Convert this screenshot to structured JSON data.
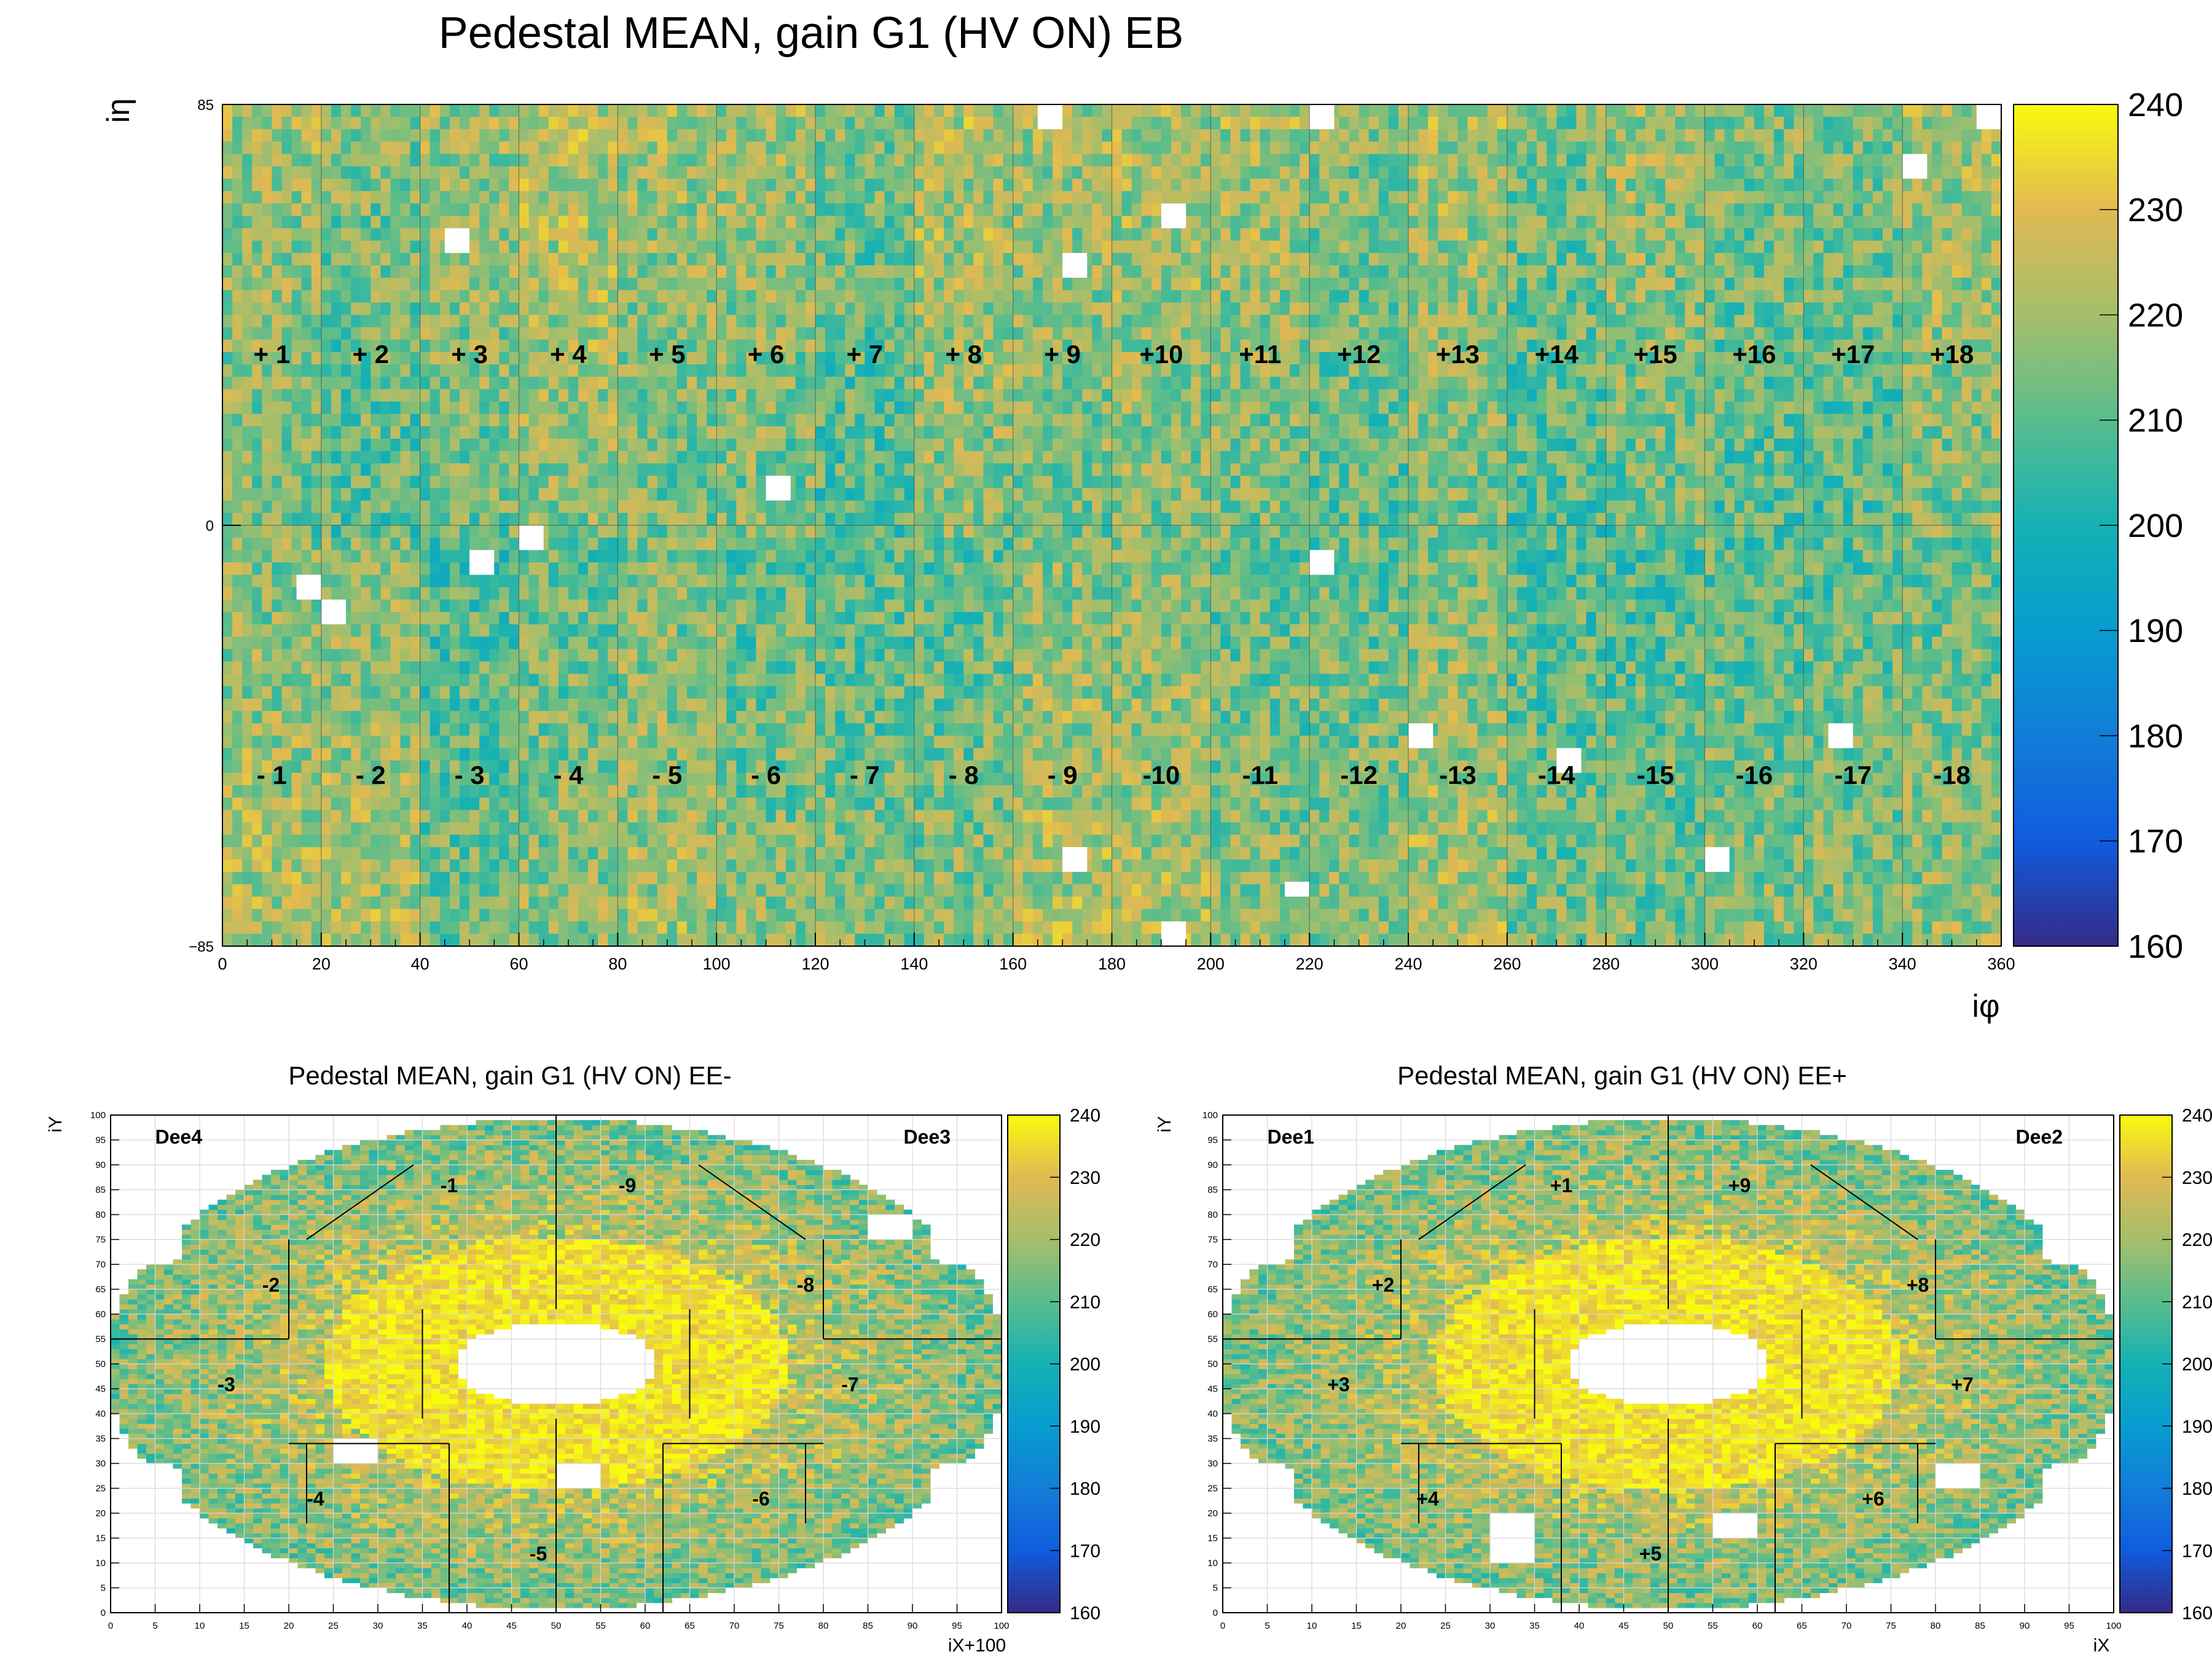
{
  "chart_data": [
    {
      "type": "heatmap",
      "title": "Pedestal MEAN, gain G1 (HV ON) EB",
      "xlabel": "iφ",
      "ylabel": "iη",
      "xlim": [
        0,
        360
      ],
      "ylim": [
        -85,
        85
      ],
      "x_ticks": [
        "0",
        "20",
        "40",
        "60",
        "80",
        "100",
        "120",
        "140",
        "160",
        "180",
        "200",
        "220",
        "240",
        "260",
        "280",
        "300",
        "320",
        "340",
        "360"
      ],
      "y_ticks": [
        "-85",
        "0",
        "85"
      ],
      "zlim": [
        160,
        240
      ],
      "z_ticks": [
        "160",
        "170",
        "180",
        "190",
        "200",
        "210",
        "220",
        "230",
        "240"
      ],
      "supermodule_labels_top": [
        "+1",
        "+2",
        "+3",
        "+4",
        "+5",
        "+6",
        "+7",
        "+8",
        "+9",
        "+10",
        "+11",
        "+12",
        "+13",
        "+14",
        "+15",
        "+16",
        "+17",
        "+18"
      ],
      "supermodule_labels_bottom": [
        "-1",
        "-2",
        "-3",
        "-4",
        "-5",
        "-6",
        "-7",
        "-8",
        "-9",
        "-10",
        "-11",
        "-12",
        "-13",
        "-14",
        "-15",
        "-16",
        "-17",
        "-18"
      ],
      "typical_value_range": [
        195,
        235
      ],
      "empty_towers": [
        {
          "iphi_from": 165,
          "iphi_to": 170,
          "ieta_from": 80,
          "ieta_to": 85
        },
        {
          "iphi_from": 220,
          "iphi_to": 225,
          "ieta_from": 80,
          "ieta_to": 85
        },
        {
          "iphi_from": 355,
          "iphi_to": 360,
          "ieta_from": 80,
          "ieta_to": 85
        },
        {
          "iphi_from": 340,
          "iphi_to": 345,
          "ieta_from": 70,
          "ieta_to": 75
        },
        {
          "iphi_from": 190,
          "iphi_to": 195,
          "ieta_from": 60,
          "ieta_to": 65
        },
        {
          "iphi_from": 45,
          "iphi_to": 50,
          "ieta_from": 55,
          "ieta_to": 60
        },
        {
          "iphi_from": 170,
          "iphi_to": 175,
          "ieta_from": 50,
          "ieta_to": 55
        },
        {
          "iphi_from": 110,
          "iphi_to": 115,
          "ieta_from": 5,
          "ieta_to": 10
        },
        {
          "iphi_from": 60,
          "iphi_to": 65,
          "ieta_from": -5,
          "ieta_to": 0
        },
        {
          "iphi_from": 50,
          "iphi_to": 55,
          "ieta_from": -10,
          "ieta_to": -5
        },
        {
          "iphi_from": 220,
          "iphi_to": 225,
          "ieta_from": -10,
          "ieta_to": -5
        },
        {
          "iphi_from": 15,
          "iphi_to": 20,
          "ieta_from": -15,
          "ieta_to": -10
        },
        {
          "iphi_from": 20,
          "iphi_to": 25,
          "ieta_from": -20,
          "ieta_to": -15
        },
        {
          "iphi_from": 240,
          "iphi_to": 245,
          "ieta_from": -45,
          "ieta_to": -40
        },
        {
          "iphi_from": 325,
          "iphi_to": 330,
          "ieta_from": -45,
          "ieta_to": -40
        },
        {
          "iphi_from": 270,
          "iphi_to": 275,
          "ieta_from": -50,
          "ieta_to": -45
        },
        {
          "iphi_from": 170,
          "iphi_to": 175,
          "ieta_from": -70,
          "ieta_to": -65
        },
        {
          "iphi_from": 300,
          "iphi_to": 305,
          "ieta_from": -70,
          "ieta_to": -65
        },
        {
          "iphi_from": 215,
          "iphi_to": 220,
          "ieta_from": -75,
          "ieta_to": -72
        },
        {
          "iphi_from": 190,
          "iphi_to": 195,
          "ieta_from": -85,
          "ieta_to": -80
        }
      ]
    },
    {
      "type": "heatmap",
      "title": "Pedestal MEAN, gain G1 (HV ON) EE-",
      "xlabel": "iX+100",
      "ylabel": "iY",
      "xlim": [
        0,
        100
      ],
      "ylim": [
        0,
        100
      ],
      "x_ticks": [
        "0",
        "5",
        "10",
        "15",
        "20",
        "25",
        "30",
        "35",
        "40",
        "45",
        "50",
        "55",
        "60",
        "65",
        "70",
        "75",
        "80",
        "85",
        "90",
        "95",
        "100"
      ],
      "y_ticks": [
        "0",
        "5",
        "10",
        "15",
        "20",
        "25",
        "30",
        "35",
        "40",
        "45",
        "50",
        "55",
        "60",
        "65",
        "70",
        "75",
        "80",
        "85",
        "90",
        "95",
        "100"
      ],
      "zlim": [
        160,
        240
      ],
      "z_ticks": [
        "160",
        "170",
        "180",
        "190",
        "200",
        "210",
        "220",
        "230",
        "240"
      ],
      "dee_labels": [
        "Dee4",
        "Dee3"
      ],
      "sector_labels": [
        {
          "label": "-1",
          "x": 38,
          "y": 86
        },
        {
          "label": "-9",
          "x": 58,
          "y": 86
        },
        {
          "label": "-2",
          "x": 18,
          "y": 66
        },
        {
          "label": "-8",
          "x": 78,
          "y": 66
        },
        {
          "label": "-3",
          "x": 13,
          "y": 46
        },
        {
          "label": "-7",
          "x": 83,
          "y": 46
        },
        {
          "label": "-4",
          "x": 23,
          "y": 23
        },
        {
          "label": "-6",
          "x": 73,
          "y": 23
        },
        {
          "label": "-5",
          "x": 48,
          "y": 12
        }
      ],
      "empty_regions": [
        {
          "x_from": 85,
          "x_to": 90,
          "y_from": 75,
          "y_to": 80
        },
        {
          "x_from": 25,
          "x_to": 30,
          "y_from": 30,
          "y_to": 35
        },
        {
          "x_from": 50,
          "x_to": 55,
          "y_from": 25,
          "y_to": 30
        }
      ]
    },
    {
      "type": "heatmap",
      "title": "Pedestal MEAN, gain G1 (HV ON) EE+",
      "xlabel": "iX",
      "ylabel": "iY",
      "xlim": [
        0,
        100
      ],
      "ylim": [
        0,
        100
      ],
      "x_ticks": [
        "0",
        "5",
        "10",
        "15",
        "20",
        "25",
        "30",
        "35",
        "40",
        "45",
        "50",
        "55",
        "60",
        "65",
        "70",
        "75",
        "80",
        "85",
        "90",
        "95",
        "100"
      ],
      "y_ticks": [
        "0",
        "5",
        "10",
        "15",
        "20",
        "25",
        "30",
        "35",
        "40",
        "45",
        "50",
        "55",
        "60",
        "65",
        "70",
        "75",
        "80",
        "85",
        "90",
        "95",
        "100"
      ],
      "zlim": [
        160,
        240
      ],
      "z_ticks": [
        "160",
        "170",
        "180",
        "190",
        "200",
        "210",
        "220",
        "230",
        "240"
      ],
      "dee_labels": [
        "Dee1",
        "Dee2"
      ],
      "sector_labels": [
        {
          "label": "+1",
          "x": 38,
          "y": 86
        },
        {
          "label": "+9",
          "x": 58,
          "y": 86
        },
        {
          "label": "+2",
          "x": 18,
          "y": 66
        },
        {
          "label": "+8",
          "x": 78,
          "y": 66
        },
        {
          "label": "+3",
          "x": 13,
          "y": 46
        },
        {
          "label": "+7",
          "x": 83,
          "y": 46
        },
        {
          "label": "+4",
          "x": 23,
          "y": 23
        },
        {
          "label": "+6",
          "x": 73,
          "y": 23
        },
        {
          "label": "+5",
          "x": 48,
          "y": 12
        }
      ],
      "empty_regions": [
        {
          "x_from": 80,
          "x_to": 85,
          "y_from": 25,
          "y_to": 30
        },
        {
          "x_from": 30,
          "x_to": 35,
          "y_from": 10,
          "y_to": 20
        },
        {
          "x_from": 55,
          "x_to": 60,
          "y_from": 15,
          "y_to": 20
        }
      ]
    }
  ]
}
